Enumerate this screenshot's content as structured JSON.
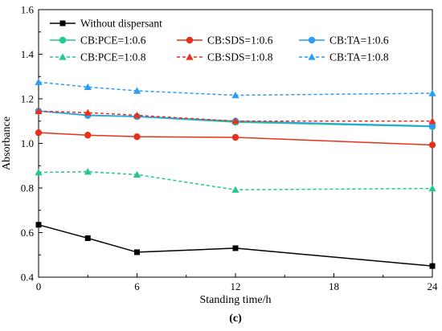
{
  "chart_data": {
    "type": "line",
    "xlabel": "Standing time/h",
    "ylabel": "Absorbance",
    "xlim": [
      0,
      24
    ],
    "ylim": [
      0.4,
      1.6
    ],
    "xticks": [
      "0",
      "6",
      "12",
      "18",
      "24"
    ],
    "yticks": [
      "0.4",
      "0.6",
      "0.8",
      "1.0",
      "1.2",
      "1.4",
      "1.6"
    ],
    "panel_label": "(c)",
    "grid": false,
    "legend_position": "top-left",
    "x": [
      0,
      3,
      6,
      12,
      24
    ],
    "series": [
      {
        "name": "Without dispersant",
        "color": "#000000",
        "marker": "square",
        "dashed": false,
        "values": [
          0.635,
          0.575,
          0.512,
          0.53,
          0.45
        ]
      },
      {
        "name": "CB:PCE=1:0.6",
        "color": "#22c98a",
        "marker": "circle",
        "dashed": false,
        "values": [
          1.145,
          1.125,
          1.12,
          1.095,
          1.075
        ]
      },
      {
        "name": "CB:SDS=1:0.6",
        "color": "#e8301a",
        "marker": "circle",
        "dashed": false,
        "values": [
          1.048,
          1.037,
          1.03,
          1.027,
          0.993
        ]
      },
      {
        "name": "CB:TA=1:0.6",
        "color": "#2a9df4",
        "marker": "circle",
        "dashed": false,
        "values": [
          1.145,
          1.127,
          1.121,
          1.1,
          1.078
        ]
      },
      {
        "name": "CB:PCE=1:0.8",
        "color": "#22c98a",
        "marker": "triangle",
        "dashed": true,
        "values": [
          0.87,
          0.873,
          0.86,
          0.792,
          0.798
        ]
      },
      {
        "name": "CB:SDS=1:0.8",
        "color": "#e8301a",
        "marker": "triangle",
        "dashed": true,
        "values": [
          1.145,
          1.138,
          1.126,
          1.1,
          1.1
        ]
      },
      {
        "name": "CB:TA=1:0.8",
        "color": "#2a9df4",
        "marker": "triangle",
        "dashed": true,
        "values": [
          1.275,
          1.253,
          1.236,
          1.216,
          1.225
        ]
      }
    ]
  }
}
